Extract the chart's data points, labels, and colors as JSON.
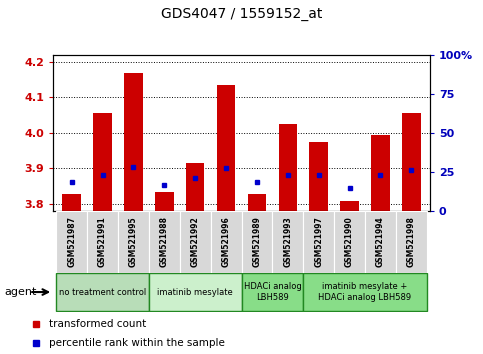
{
  "title": "GDS4047 / 1559152_at",
  "samples": [
    "GSM521987",
    "GSM521991",
    "GSM521995",
    "GSM521988",
    "GSM521992",
    "GSM521996",
    "GSM521989",
    "GSM521993",
    "GSM521997",
    "GSM521990",
    "GSM521994",
    "GSM521998"
  ],
  "red_values": [
    3.826,
    4.057,
    4.168,
    3.832,
    3.915,
    4.135,
    3.828,
    4.025,
    3.975,
    3.806,
    3.995,
    4.055
  ],
  "blue_values": [
    3.862,
    3.882,
    3.904,
    3.853,
    3.873,
    3.9,
    3.862,
    3.882,
    3.882,
    3.845,
    3.882,
    3.895
  ],
  "ylim_left": [
    3.78,
    4.22
  ],
  "ylim_right": [
    0,
    100
  ],
  "yticks_left": [
    3.8,
    3.9,
    4.0,
    4.1,
    4.2
  ],
  "yticks_right": [
    0,
    25,
    50,
    75,
    100
  ],
  "groups": [
    {
      "label": "no treatment control",
      "start": 0,
      "end": 3
    },
    {
      "label": "imatinib mesylate",
      "start": 3,
      "end": 6
    },
    {
      "label": "HDACi analog\nLBH589",
      "start": 6,
      "end": 8
    },
    {
      "label": "imatinib mesylate +\nHDACi analog LBH589",
      "start": 8,
      "end": 12
    }
  ],
  "group_colors": [
    "#b8ddb8",
    "#ccf0cc",
    "#88dd88",
    "#88dd88"
  ],
  "bar_color": "#cc0000",
  "dot_color": "#0000cc",
  "bar_width": 0.6,
  "bar_bottom": 3.78,
  "left_label_color": "#cc0000",
  "right_label_color": "#0000bb",
  "agent_label": "agent",
  "legend_items": [
    "transformed count",
    "percentile rank within the sample"
  ],
  "plot_bg": "#ffffff"
}
